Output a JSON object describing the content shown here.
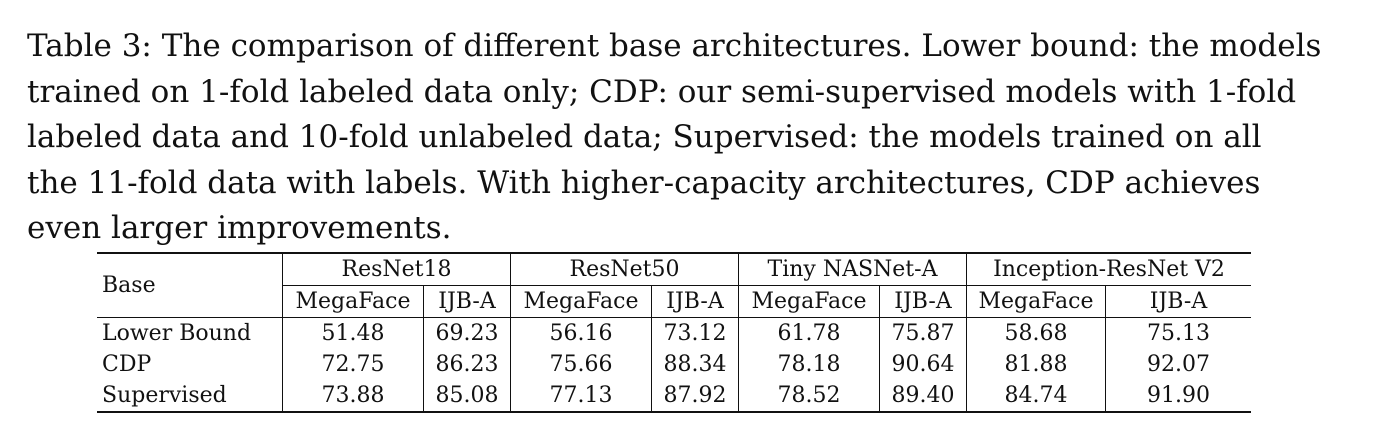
{
  "caption": {
    "lines": [
      "Table 3: The comparison of different base architectures. Lower bound: the models",
      "trained on 1-fold labeled data only; CDP: our semi-supervised models with 1-fold",
      "labeled data and 10-fold unlabeled data; Supervised: the models trained on all",
      "the 11-fold data with labels. With higher-capacity architectures, CDP achieves",
      "even larger improvements."
    ]
  },
  "table": {
    "base_header": "Base",
    "architectures": [
      "ResNet18",
      "ResNet50",
      "Tiny NASNet-A",
      "Inception-ResNet V2"
    ],
    "metrics": [
      "MegaFace",
      "IJB-A"
    ],
    "rows": [
      {
        "label": "Lower Bound",
        "values": [
          "51.48",
          "69.23",
          "56.16",
          "73.12",
          "61.78",
          "75.87",
          "58.68",
          "75.13"
        ]
      },
      {
        "label": "CDP",
        "values": [
          "72.75",
          "86.23",
          "75.66",
          "88.34",
          "78.18",
          "90.64",
          "81.88",
          "92.07"
        ]
      },
      {
        "label": "Supervised",
        "values": [
          "73.88",
          "85.08",
          "77.13",
          "87.92",
          "78.52",
          "89.40",
          "84.74",
          "91.90"
        ]
      }
    ]
  }
}
